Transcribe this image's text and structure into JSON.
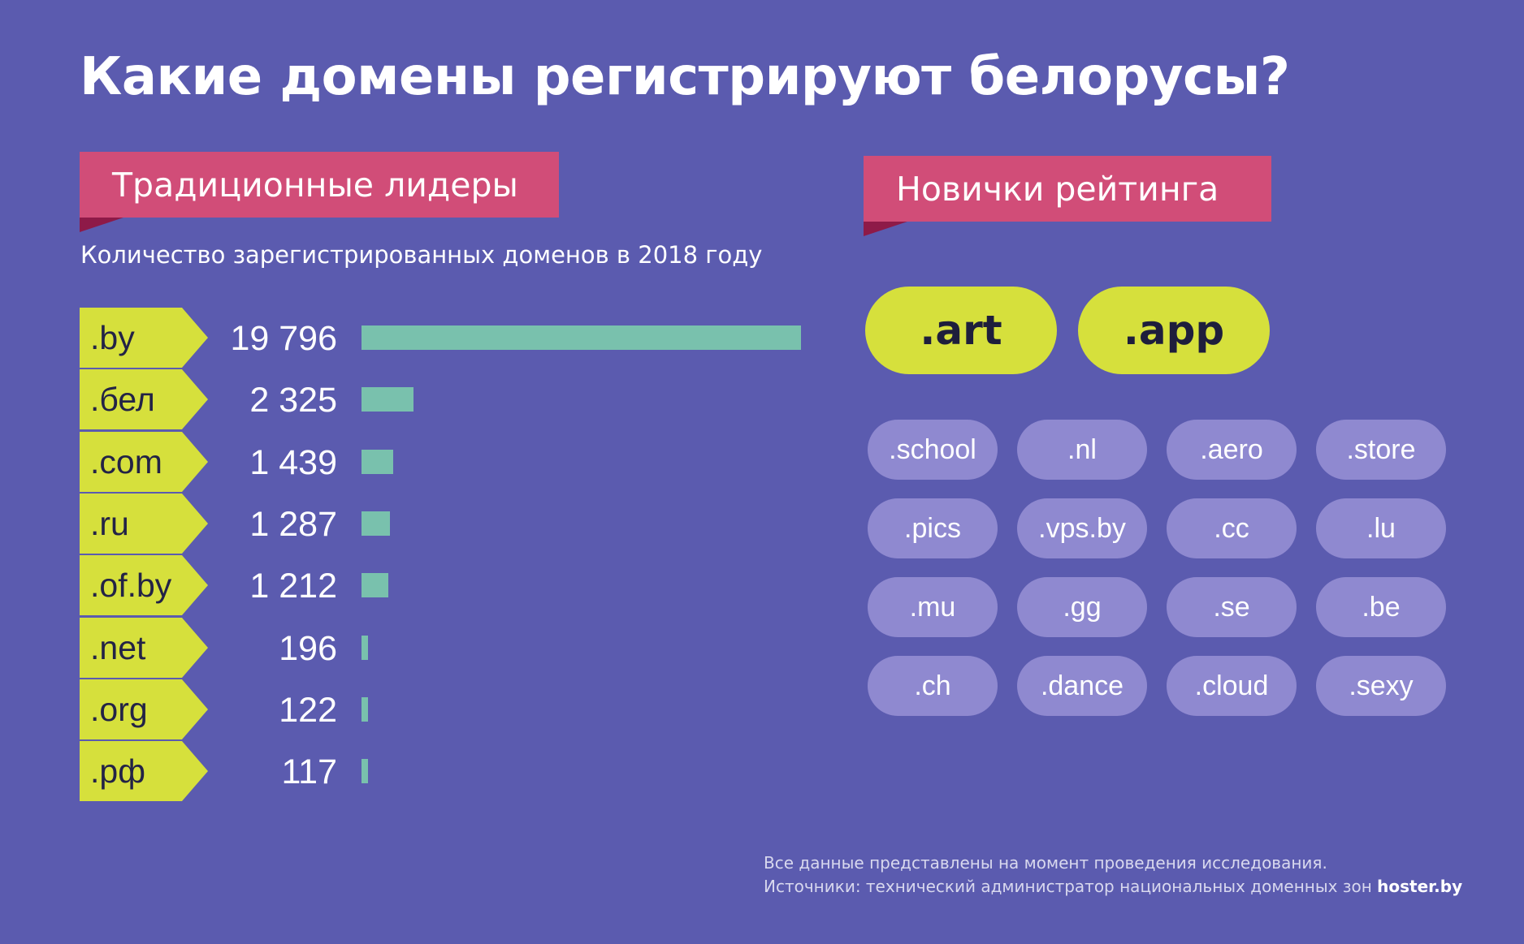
{
  "title": "Какие домены регистрируют белорусы?",
  "left_ribbon": "Традиционные лидеры",
  "right_ribbon": "Новички рейтинга",
  "subtitle": "Количество зарегистрированных доменов в 2018 году",
  "chart_data": {
    "type": "bar",
    "orientation": "horizontal",
    "title": "Традиционные лидеры",
    "subtitle": "Количество зарегистрированных доменов в 2018 году",
    "categories": [
      ".by",
      ".бел",
      ".com",
      ".ru",
      ".of.by",
      ".net",
      ".org",
      ".рф"
    ],
    "values": [
      19796,
      2325,
      1439,
      1287,
      1212,
      196,
      122,
      117
    ],
    "value_labels": [
      "19 796",
      "2 325",
      "1 439",
      "1 287",
      "1 212",
      "196",
      "122",
      "117"
    ],
    "xlim": [
      0,
      19796
    ],
    "grid": false,
    "colors": {
      "bar": "#79c1ad",
      "tag": "#d6e03c"
    }
  },
  "newcomers": {
    "highlighted": [
      ".art",
      ".app"
    ],
    "others": [
      ".school",
      ".nl",
      ".aero",
      ".store",
      ".pics",
      ".vps.by",
      ".cc",
      ".lu",
      ".mu",
      ".gg",
      ".se",
      ".be",
      ".ch",
      ".dance",
      ".cloud",
      ".sexy"
    ]
  },
  "footer": {
    "line1": "Все данные представлены на момент проведения исследования.",
    "line2": "Источники: технический администратор национальных доменных зон",
    "brand": "hoster.by"
  },
  "colors": {
    "background": "#5b5baf",
    "ribbon": "#d14d78",
    "ribbon_fold": "#8e1a48",
    "accent": "#d6e03c",
    "pill": "#8f89d0",
    "bar": "#79c1ad"
  }
}
